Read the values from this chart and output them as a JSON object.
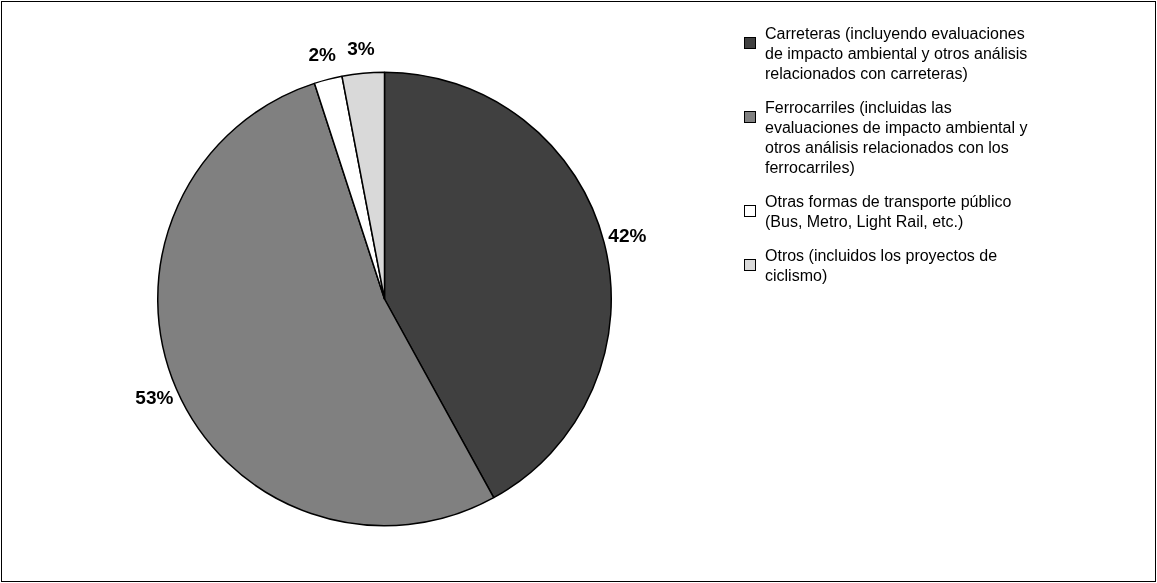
{
  "chart_data": {
    "type": "pie",
    "categories": [
      "Carreteras (incluyendo evaluaciones de impacto ambiental y otros análisis relacionados con carreteras)",
      "Ferrocarriles (incluidas las evaluaciones de impacto ambiental y otros análisis relacionados con los ferrocarriles)",
      "Otras formas de transporte público (Bus, Metro, Light Rail, etc.)",
      "Otros (incluidos los proyectos de ciclismo)"
    ],
    "values": [
      42,
      53,
      2,
      3
    ],
    "colors": [
      "#404040",
      "#808080",
      "#ffffff",
      "#d9d9d9"
    ],
    "value_labels": [
      "42%",
      "53%",
      "2%",
      "3%"
    ],
    "legend": "right"
  }
}
